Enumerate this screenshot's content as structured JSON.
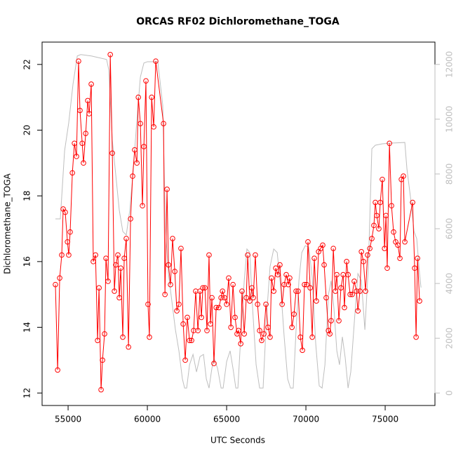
{
  "chart_data": {
    "type": "line",
    "title": "ORCAS RF02 Dichloromethane_TOGA",
    "x_label": "UTC Seconds",
    "y_label": "Dichloromethane_TOGA",
    "xlim": [
      53360,
      78140
    ],
    "xticks": [
      55000,
      60000,
      65000,
      70000,
      75000
    ],
    "ylim": [
      11.62,
      22.68
    ],
    "yticks": [
      12,
      14,
      16,
      18,
      20,
      22
    ],
    "y2lim": [
      -456,
      12816
    ],
    "y2ticks": [
      0,
      2000,
      4000,
      6000,
      8000,
      10000,
      12000
    ],
    "y2_color": "#bebebe",
    "grid": false,
    "series": [
      {
        "color": "#ff0000",
        "marker": "circle",
        "x": [
          54200,
          54340,
          54470,
          54600,
          54690,
          54820,
          54960,
          55040,
          55130,
          55270,
          55400,
          55530,
          55660,
          55750,
          55890,
          55970,
          56110,
          56240,
          56330,
          56460,
          56590,
          56730,
          56860,
          56950,
          57080,
          57170,
          57300,
          57390,
          57520,
          57660,
          57790,
          57920,
          58010,
          58140,
          58230,
          58320,
          58450,
          58540,
          58670,
          58810,
          58940,
          59070,
          59200,
          59340,
          59430,
          59560,
          59690,
          59780,
          59910,
          60040,
          60130,
          60270,
          60400,
          60530,
          61020,
          61110,
          61240,
          61330,
          61460,
          61590,
          61730,
          61860,
          61990,
          62120,
          62260,
          62390,
          62520,
          62660,
          62790,
          62920,
          63050,
          63190,
          63320,
          63410,
          63500,
          63630,
          63760,
          63890,
          63980,
          64070,
          64200,
          64340,
          64510,
          64650,
          64740,
          64870,
          65000,
          65130,
          65270,
          65400,
          65530,
          65660,
          65750,
          65890,
          65970,
          66110,
          66240,
          66330,
          66460,
          66590,
          66680,
          66810,
          66950,
          67080,
          67210,
          67350,
          67480,
          67610,
          67740,
          67830,
          67970,
          68100,
          68230,
          68360,
          68500,
          68630,
          68760,
          68890,
          68980,
          69120,
          69250,
          69380,
          69510,
          69650,
          69780,
          69910,
          70050,
          70130,
          70270,
          70400,
          70530,
          70660,
          70800,
          70930,
          71060,
          71150,
          71280,
          71420,
          71510,
          71590,
          71730,
          71860,
          71950,
          72080,
          72210,
          72350,
          72430,
          72570,
          72660,
          72790,
          72920,
          73050,
          73190,
          73280,
          73410,
          73500,
          73630,
          73760,
          73890,
          74030,
          74160,
          74290,
          74380,
          74470,
          74600,
          74690,
          74820,
          74960,
          75050,
          75130,
          75270,
          75400,
          75530,
          75660,
          75800,
          75930,
          76020,
          76150,
          76240,
          76730,
          76860,
          76950,
          77040,
          77170
        ],
        "values": [
          15.3,
          12.7,
          15.5,
          16.2,
          17.6,
          17.5,
          16.6,
          16.2,
          16.9,
          18.7,
          19.6,
          19.2,
          22.1,
          20.6,
          19.6,
          19.0,
          19.9,
          20.9,
          20.5,
          21.4,
          16.0,
          16.2,
          13.6,
          15.2,
          12.1,
          13.0,
          13.8,
          16.1,
          15.4,
          22.3,
          19.3,
          15.1,
          15.9,
          16.2,
          14.9,
          15.8,
          13.7,
          16.1,
          16.7,
          13.4,
          17.3,
          18.6,
          19.4,
          19.0,
          21.0,
          20.2,
          17.7,
          19.5,
          21.5,
          14.7,
          13.7,
          21.0,
          20.1,
          22.1,
          20.2,
          15.0,
          18.2,
          15.9,
          15.3,
          16.7,
          15.7,
          14.5,
          14.7,
          16.4,
          14.1,
          13.0,
          14.3,
          13.6,
          13.6,
          13.9,
          15.1,
          13.9,
          15.1,
          14.3,
          15.2,
          15.2,
          13.9,
          16.2,
          14.1,
          14.9,
          12.9,
          14.6,
          14.6,
          14.9,
          15.1,
          14.9,
          14.7,
          15.5,
          14.0,
          15.3,
          14.3,
          13.8,
          13.9,
          13.5,
          15.1,
          13.8,
          14.9,
          16.2,
          14.8,
          15.2,
          14.9,
          16.2,
          14.7,
          13.9,
          13.6,
          13.8,
          14.7,
          14.0,
          13.7,
          15.5,
          15.1,
          15.8,
          15.6,
          15.9,
          14.7,
          15.3,
          15.6,
          15.3,
          15.5,
          14.0,
          14.4,
          15.1,
          15.1,
          13.7,
          13.3,
          15.3,
          15.3,
          16.6,
          15.2,
          13.7,
          16.1,
          14.8,
          16.3,
          16.4,
          16.5,
          15.9,
          14.9,
          13.9,
          13.8,
          14.2,
          16.4,
          15.1,
          15.6,
          14.2,
          15.2,
          15.6,
          14.6,
          16.0,
          15.6,
          15.0,
          15.0,
          15.4,
          15.1,
          14.5,
          15.1,
          16.3,
          16.0,
          15.1,
          16.2,
          16.4,
          16.7,
          17.1,
          17.8,
          17.4,
          17.0,
          17.8,
          18.5,
          16.4,
          17.4,
          15.8,
          19.6,
          17.7,
          16.9,
          16.6,
          16.5,
          16.1,
          18.5,
          18.6,
          16.6,
          17.8,
          15.8,
          13.7,
          16.1,
          14.8
        ]
      },
      {
        "color": "#bebebe",
        "axis": "y2",
        "x": [
          54200,
          54510,
          54780,
          55040,
          55310,
          55580,
          55800,
          56460,
          57430,
          57570,
          57790,
          58010,
          58230,
          58450,
          58670,
          58890,
          59120,
          59340,
          59560,
          59780,
          60000,
          60660,
          60970,
          61150,
          61330,
          61550,
          61770,
          61990,
          62210,
          62350,
          62480,
          62660,
          62880,
          63100,
          63320,
          63540,
          63720,
          63890,
          64070,
          64200,
          64430,
          64650,
          64780,
          65000,
          65220,
          65400,
          65580,
          65710,
          65890,
          66110,
          66280,
          66460,
          66640,
          66860,
          67080,
          67300,
          67520,
          67740,
          67970,
          68190,
          68410,
          68630,
          68850,
          69030,
          69200,
          69380,
          69560,
          69740,
          69960,
          70180,
          70400,
          70620,
          70840,
          71020,
          71200,
          71420,
          71590,
          71770,
          71950,
          72120,
          72300,
          72480,
          72660,
          72830,
          73050,
          73280,
          73500,
          73720,
          73940,
          74160,
          74380,
          74820,
          75490,
          76240,
          76370,
          76590,
          76820,
          76990,
          77170,
          77260
        ],
        "values": [
          6360,
          6360,
          8850,
          9870,
          11280,
          12310,
          12360,
          12310,
          12180,
          11790,
          9230,
          7950,
          6670,
          5900,
          5770,
          6670,
          8200,
          10000,
          11540,
          12050,
          12100,
          12100,
          10510,
          5900,
          4360,
          3330,
          2310,
          1540,
          510,
          180,
          180,
          1030,
          1410,
          770,
          1330,
          1410,
          510,
          180,
          900,
          1280,
          900,
          180,
          180,
          1150,
          1540,
          900,
          180,
          180,
          2050,
          4100,
          5260,
          5130,
          3080,
          1030,
          180,
          180,
          2820,
          4620,
          5260,
          5130,
          3850,
          2050,
          510,
          180,
          180,
          2310,
          4100,
          5130,
          5380,
          5330,
          4230,
          1790,
          260,
          180,
          1030,
          3590,
          4100,
          3080,
          1540,
          1030,
          2050,
          1280,
          180,
          770,
          2560,
          4360,
          4100,
          2310,
          4620,
          8920,
          9050,
          9100,
          9130,
          9150,
          8200,
          7180,
          5900,
          5640,
          4360,
          3850
        ]
      }
    ]
  }
}
